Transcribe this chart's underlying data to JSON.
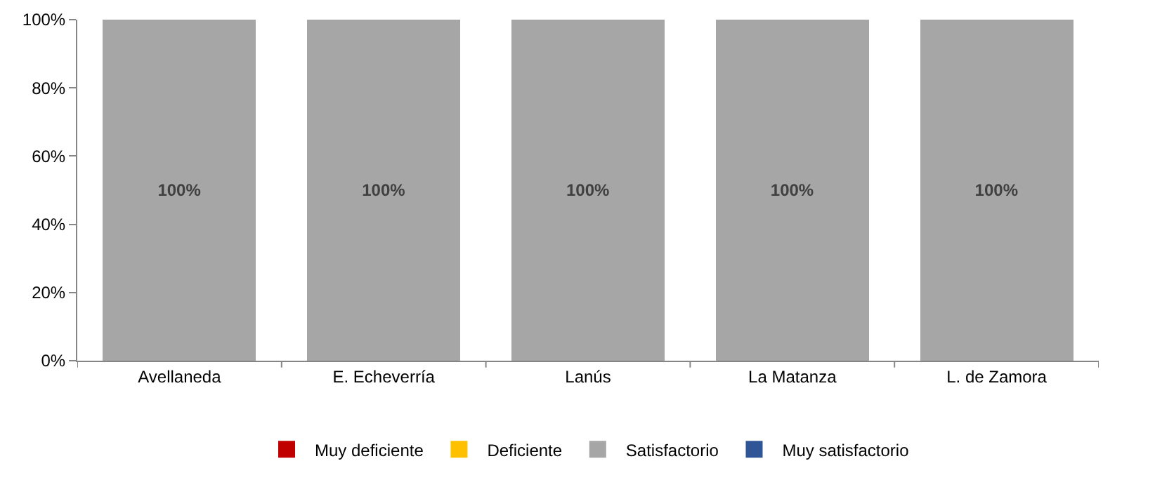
{
  "chart_data": {
    "type": "bar",
    "stacked": true,
    "categories": [
      "Avellaneda",
      "E. Echeverría",
      "Lanús",
      "La Matanza",
      "L. de Zamora"
    ],
    "series": [
      {
        "name": "Muy deficiente",
        "color": "#c00000",
        "values": [
          0,
          0,
          0,
          0,
          0
        ]
      },
      {
        "name": "Deficiente",
        "color": "#ffc000",
        "values": [
          0,
          0,
          0,
          0,
          0
        ]
      },
      {
        "name": "Satisfactorio",
        "color": "#a6a6a6",
        "values": [
          100,
          100,
          100,
          100,
          100
        ],
        "value_labels": [
          "100%",
          "100%",
          "100%",
          "100%",
          "100%"
        ]
      },
      {
        "name": "Muy satisfactorio",
        "color": "#2f5597",
        "values": [
          0,
          0,
          0,
          0,
          0
        ]
      }
    ],
    "ylim": [
      0,
      100
    ],
    "yticks": [
      {
        "value": 0,
        "label": "0%"
      },
      {
        "value": 20,
        "label": "20%"
      },
      {
        "value": 40,
        "label": "40%"
      },
      {
        "value": 60,
        "label": "60%"
      },
      {
        "value": 80,
        "label": "80%"
      },
      {
        "value": 100,
        "label": "100%"
      }
    ],
    "grid": false,
    "legend": "bottom"
  }
}
